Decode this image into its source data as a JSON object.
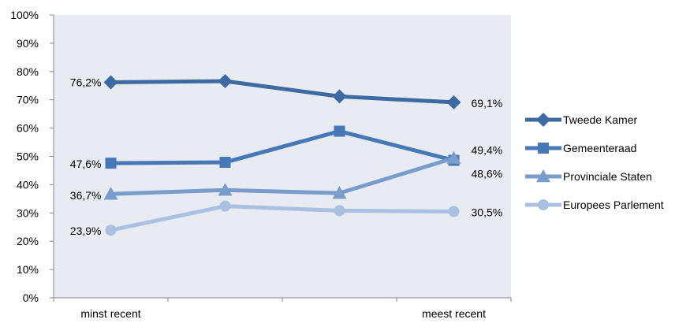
{
  "chart_data": {
    "type": "line",
    "categories": [
      "minst recent",
      "",
      "",
      "meest recent"
    ],
    "ylim": [
      0,
      100
    ],
    "y_ticks": [
      "0%",
      "10%",
      "20%",
      "30%",
      "40%",
      "50%",
      "60%",
      "70%",
      "80%",
      "90%",
      "100%"
    ],
    "grid": false,
    "legend_position": "right",
    "series": [
      {
        "name": "Tweede Kamer",
        "values": [
          76.2,
          76.6,
          71.2,
          69.1
        ],
        "color": "#3d6aa3",
        "marker": "diamond",
        "labels": [
          "76,2%",
          "",
          "",
          "69,1%"
        ]
      },
      {
        "name": "Gemeenteraad",
        "values": [
          47.6,
          47.9,
          58.9,
          48.6
        ],
        "color": "#4677b6",
        "marker": "square",
        "labels": [
          "47,6%",
          "",
          "",
          "48,6%"
        ]
      },
      {
        "name": "Provinciale Staten",
        "values": [
          36.7,
          38.1,
          37.0,
          49.4
        ],
        "color": "#7a9ccb",
        "marker": "triangle",
        "labels": [
          "36,7%",
          "",
          "",
          "49,4%"
        ]
      },
      {
        "name": "Europees Parlement",
        "values": [
          23.9,
          32.4,
          30.8,
          30.5
        ],
        "color": "#a9c0e0",
        "marker": "circle",
        "labels": [
          "23,9%",
          "",
          "",
          "30,5%"
        ]
      }
    ]
  }
}
